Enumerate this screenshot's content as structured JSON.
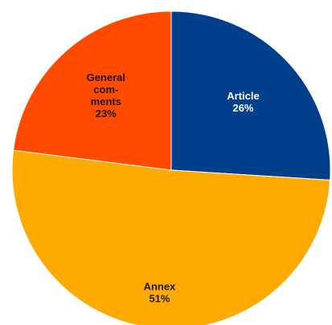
{
  "chart_data": {
    "type": "pie",
    "title": "",
    "slices": [
      {
        "label": "Article",
        "label_lines": [
          "Article"
        ],
        "percent_label": "26%",
        "value": 26,
        "color": "#003f8c",
        "text_color": "#ffffff"
      },
      {
        "label": "Annex",
        "label_lines": [
          "Annex"
        ],
        "percent_label": "51%",
        "value": 51,
        "color": "#ffaa00",
        "text_color": "#1a1a1a"
      },
      {
        "label": "General comments",
        "label_lines": [
          "General",
          "com-",
          "ments"
        ],
        "percent_label": "23%",
        "value": 23,
        "color": "#ff4a00",
        "text_color": "#1a1a1a"
      }
    ],
    "start_angle_deg": 0,
    "direction": "clockwise",
    "border_color": "#ffffff"
  }
}
